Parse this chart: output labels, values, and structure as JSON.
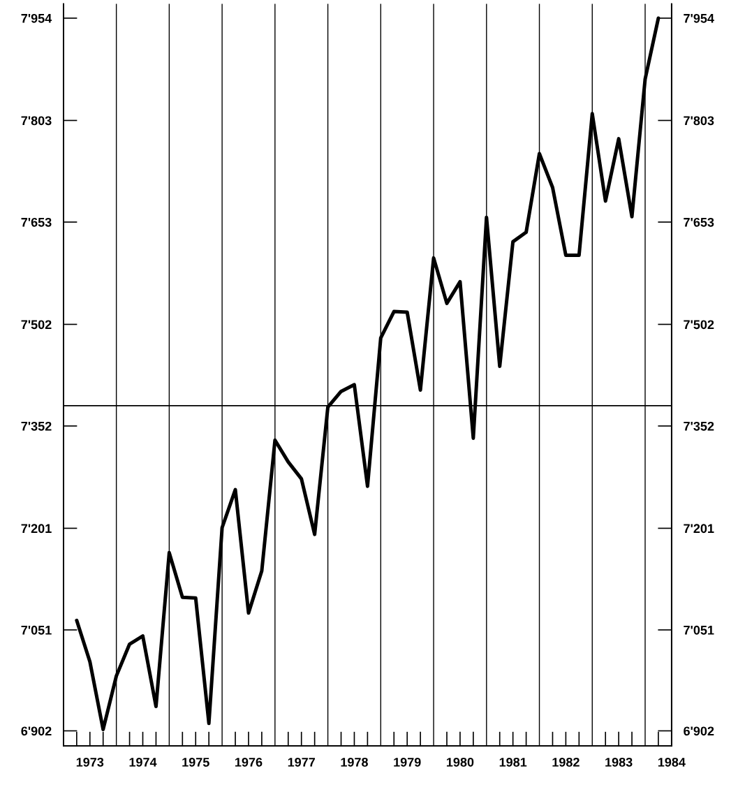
{
  "chart_data": {
    "type": "line",
    "x": [
      1973.25,
      1973.5,
      1973.75,
      1974.0,
      1974.25,
      1974.5,
      1974.75,
      1975.0,
      1975.25,
      1975.5,
      1975.75,
      1976.0,
      1976.25,
      1976.5,
      1976.75,
      1977.0,
      1977.25,
      1977.5,
      1977.75,
      1978.0,
      1978.25,
      1978.5,
      1978.75,
      1979.0,
      1979.25,
      1979.5,
      1979.75,
      1980.0,
      1980.25,
      1980.5,
      1980.75,
      1981.0,
      1981.25,
      1981.5,
      1981.75,
      1982.0,
      1982.25,
      1982.5,
      1982.75,
      1983.0,
      1983.25,
      1983.5,
      1983.75,
      1984.0,
      1984.25
    ],
    "series": [
      {
        "color": "#000000",
        "values": [
          7065,
          7004,
          6904,
          6983,
          7030,
          7042,
          6938,
          7165,
          7099,
          7098,
          6913,
          7202,
          7258,
          7076,
          7138,
          7331,
          7299,
          7274,
          7192,
          7380,
          7403,
          7413,
          7263,
          7482,
          7521,
          7520,
          7405,
          7600,
          7533,
          7565,
          7334,
          7660,
          7440,
          7624,
          7638,
          7754,
          7704,
          7604,
          7604,
          7813,
          7684,
          7776,
          7661,
          7864,
          7954
        ]
      }
    ],
    "xlim": [
      1973.0,
      1984.5
    ],
    "xticks": [
      {
        "value": 1973.5,
        "label": "1973"
      },
      {
        "value": 1974.5,
        "label": "1974"
      },
      {
        "value": 1975.5,
        "label": "1975"
      },
      {
        "value": 1976.5,
        "label": "1976"
      },
      {
        "value": 1977.5,
        "label": "1977"
      },
      {
        "value": 1978.5,
        "label": "1978"
      },
      {
        "value": 1979.5,
        "label": "1979"
      },
      {
        "value": 1980.5,
        "label": "1980"
      },
      {
        "value": 1981.5,
        "label": "1981"
      },
      {
        "value": 1982.5,
        "label": "1982"
      },
      {
        "value": 1983.5,
        "label": "1983"
      },
      {
        "value": 1984.5,
        "label": "1984"
      }
    ],
    "ylim": [
      6880,
      7975
    ],
    "yticks": [
      {
        "value": 6902,
        "label": "6'902"
      },
      {
        "value": 7051,
        "label": "7'051"
      },
      {
        "value": 7201,
        "label": "7'201"
      },
      {
        "value": 7352,
        "label": "7'352"
      },
      {
        "value": 7502,
        "label": "7'502"
      },
      {
        "value": 7653,
        "label": "7'653"
      },
      {
        "value": 7803,
        "label": "7'803"
      },
      {
        "value": 7954,
        "label": "7'954"
      }
    ],
    "y2lim": [
      6880,
      7975
    ],
    "y2ticks": [
      {
        "value": 6902,
        "label": "6'902"
      },
      {
        "value": 7051,
        "label": "7'051"
      },
      {
        "value": 7201,
        "label": "7'201"
      },
      {
        "value": 7352,
        "label": "7'352"
      },
      {
        "value": 7502,
        "label": "7'502"
      },
      {
        "value": 7653,
        "label": "7'653"
      },
      {
        "value": 7803,
        "label": "7'803"
      },
      {
        "value": 7954,
        "label": "7'954"
      }
    ],
    "ref_lines": [
      {
        "axis": "y",
        "value": 7382,
        "color": "#000000"
      },
      {
        "axis": "x",
        "value": 1974,
        "color": "#000000"
      },
      {
        "axis": "x",
        "value": 1975,
        "color": "#000000"
      },
      {
        "axis": "x",
        "value": 1976,
        "color": "#000000"
      },
      {
        "axis": "x",
        "value": 1977,
        "color": "#000000"
      },
      {
        "axis": "x",
        "value": 1978,
        "color": "#000000"
      },
      {
        "axis": "x",
        "value": 1979,
        "color": "#000000"
      },
      {
        "axis": "x",
        "value": 1980,
        "color": "#000000"
      },
      {
        "axis": "x",
        "value": 1981,
        "color": "#000000"
      },
      {
        "axis": "x",
        "value": 1982,
        "color": "#000000"
      },
      {
        "axis": "x",
        "value": 1983,
        "color": "#000000"
      },
      {
        "axis": "x",
        "value": 1984,
        "color": "#000000"
      }
    ],
    "line_style": "solid",
    "marker": "none",
    "grid": false,
    "legend": false
  }
}
